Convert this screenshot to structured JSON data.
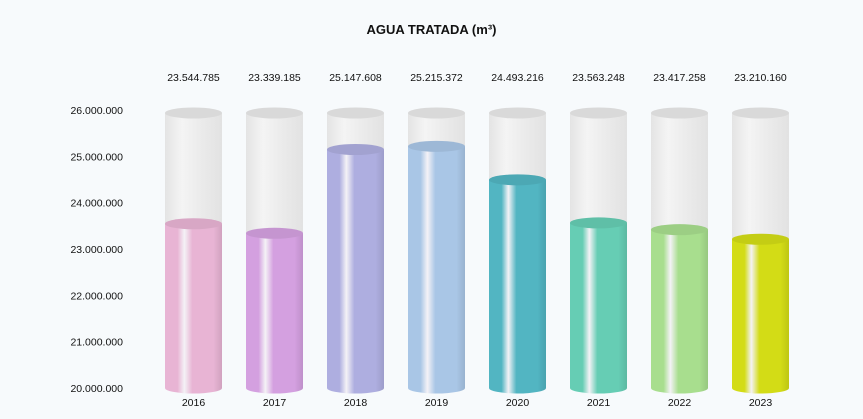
{
  "chart_data": {
    "type": "bar",
    "title": "AGUA TRATADA (m³)",
    "categories": [
      "2016",
      "2017",
      "2018",
      "2019",
      "2020",
      "2021",
      "2022",
      "2023"
    ],
    "values": [
      23544785,
      23339185,
      25147608,
      25215372,
      24493216,
      23563248,
      23417258,
      23210160
    ],
    "value_labels": [
      "23.544.785",
      "23.339.185",
      "25.147.608",
      "25.215.372",
      "24.493.216",
      "23.563.248",
      "23.417.258",
      "23.210.160"
    ],
    "y_ticks": [
      20000000,
      21000000,
      22000000,
      23000000,
      24000000,
      25000000,
      26000000
    ],
    "y_tick_labels": [
      "20.000.000",
      "21.000.000",
      "22.000.000",
      "23.000.000",
      "24.000.000",
      "25.000.000",
      "26.000.000"
    ],
    "ylim": [
      20000000,
      26000000
    ],
    "xlabel": "",
    "ylabel": "",
    "grid": false,
    "bar_colors": [
      "#e8b4d4",
      "#d4a0e0",
      "#aeaee0",
      "#a9c6e6",
      "#52b5c2",
      "#66cdb4",
      "#a8de8e",
      "#d3dc16"
    ],
    "empty_color": "#ececec",
    "background": "#f7fafc"
  }
}
